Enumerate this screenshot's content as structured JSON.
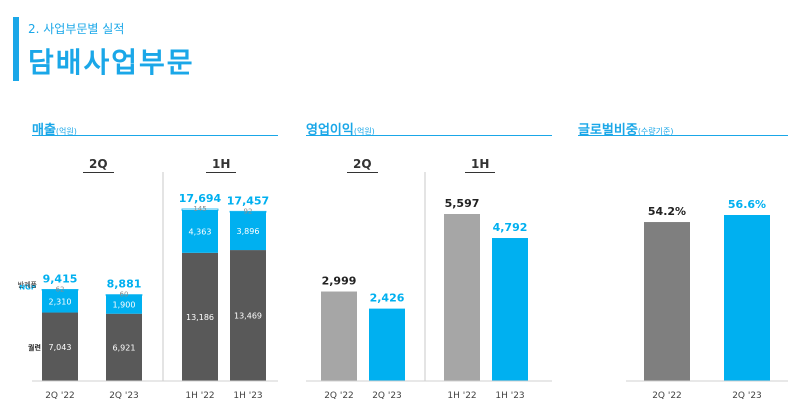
{
  "header": {
    "subtitle": "2. 사업부문별 실적",
    "title": "담배사업부문"
  },
  "sections": {
    "sales": {
      "title": "매출",
      "unit": "(억원)"
    },
    "operating_profit": {
      "title": "영업이익",
      "unit": "(억원)"
    },
    "global_share": {
      "title": "글로벌비중",
      "unit": "(수량기준)"
    }
  },
  "periods": {
    "q": "2Q",
    "h": "1H"
  },
  "colors": {
    "accent": "#1aa7e8",
    "dark_gray": "#595959",
    "gray": "#a6a6a6",
    "mid_gray": "#7f7f7f",
    "blue": "#00b0f0",
    "light_gray": "#bfbfbf"
  },
  "chart_data": [
    {
      "type": "bar",
      "stacked": true,
      "title": "매출(억원)",
      "categories": [
        "2Q '22",
        "2Q '23",
        "1H '22",
        "1H '23"
      ],
      "series": [
        {
          "name": "궐련",
          "values": [
            7043,
            6921,
            13186,
            13469
          ]
        },
        {
          "name": "NGP",
          "values": [
            2310,
            1900,
            4363,
            3896
          ]
        },
        {
          "name": "반제품",
          "values": [
            62,
            60,
            145,
            92
          ]
        }
      ],
      "totals": [
        9415,
        8881,
        17694,
        17457
      ],
      "labels": {
        "segments": [
          [
            "7,043",
            "2,310",
            "62"
          ],
          [
            "6,921",
            "1,900",
            "60"
          ],
          [
            "13,186",
            "4,363",
            "145"
          ],
          [
            "13,469",
            "3,896",
            "92"
          ]
        ],
        "totals": [
          "9,415",
          "8,881",
          "17,694",
          "17,457"
        ]
      }
    },
    {
      "type": "bar",
      "title": "영업이익(억원)",
      "categories": [
        "2Q '22",
        "2Q '23",
        "1H '22",
        "1H '23"
      ],
      "values": [
        2999,
        2426,
        5597,
        4792
      ],
      "labels": [
        "2,999",
        "2,426",
        "5,597",
        "4,792"
      ]
    },
    {
      "type": "bar",
      "title": "글로벌비중(수량기준)",
      "categories": [
        "2Q '22",
        "2Q '23"
      ],
      "values": [
        54.2,
        56.6
      ],
      "labels": [
        "54.2%",
        "56.6%"
      ]
    }
  ]
}
